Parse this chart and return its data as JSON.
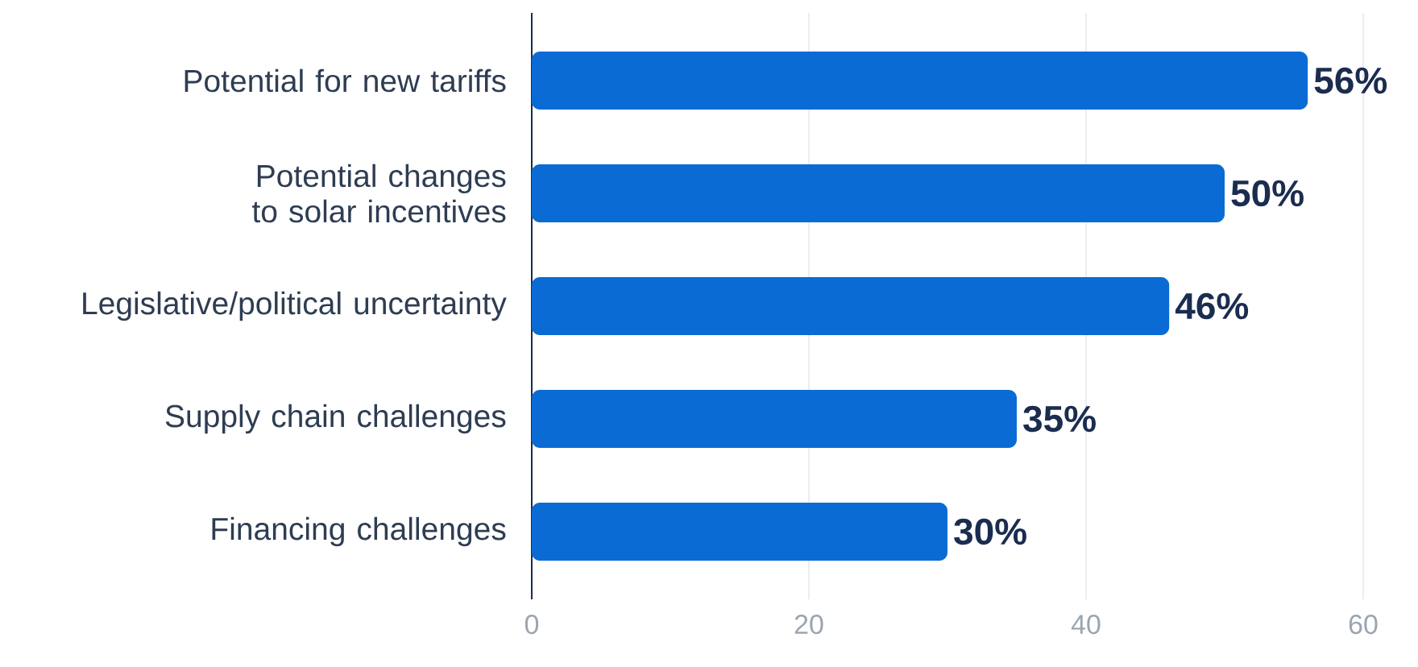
{
  "chart_data": {
    "type": "bar",
    "orientation": "horizontal",
    "categories": [
      "Potential for new tariffs",
      "Potential changes to solar incentives",
      "Legislative/political uncertainty",
      "Supply chain challenges",
      "Financing challenges"
    ],
    "values": [
      56,
      50,
      46,
      35,
      30
    ],
    "value_labels": [
      "56%",
      "50%",
      "46%",
      "35%",
      "30%"
    ],
    "color": "#0a6bd4",
    "xlim": [
      0,
      60
    ],
    "xticks": [
      0,
      20,
      40,
      60
    ],
    "grid": "x"
  }
}
